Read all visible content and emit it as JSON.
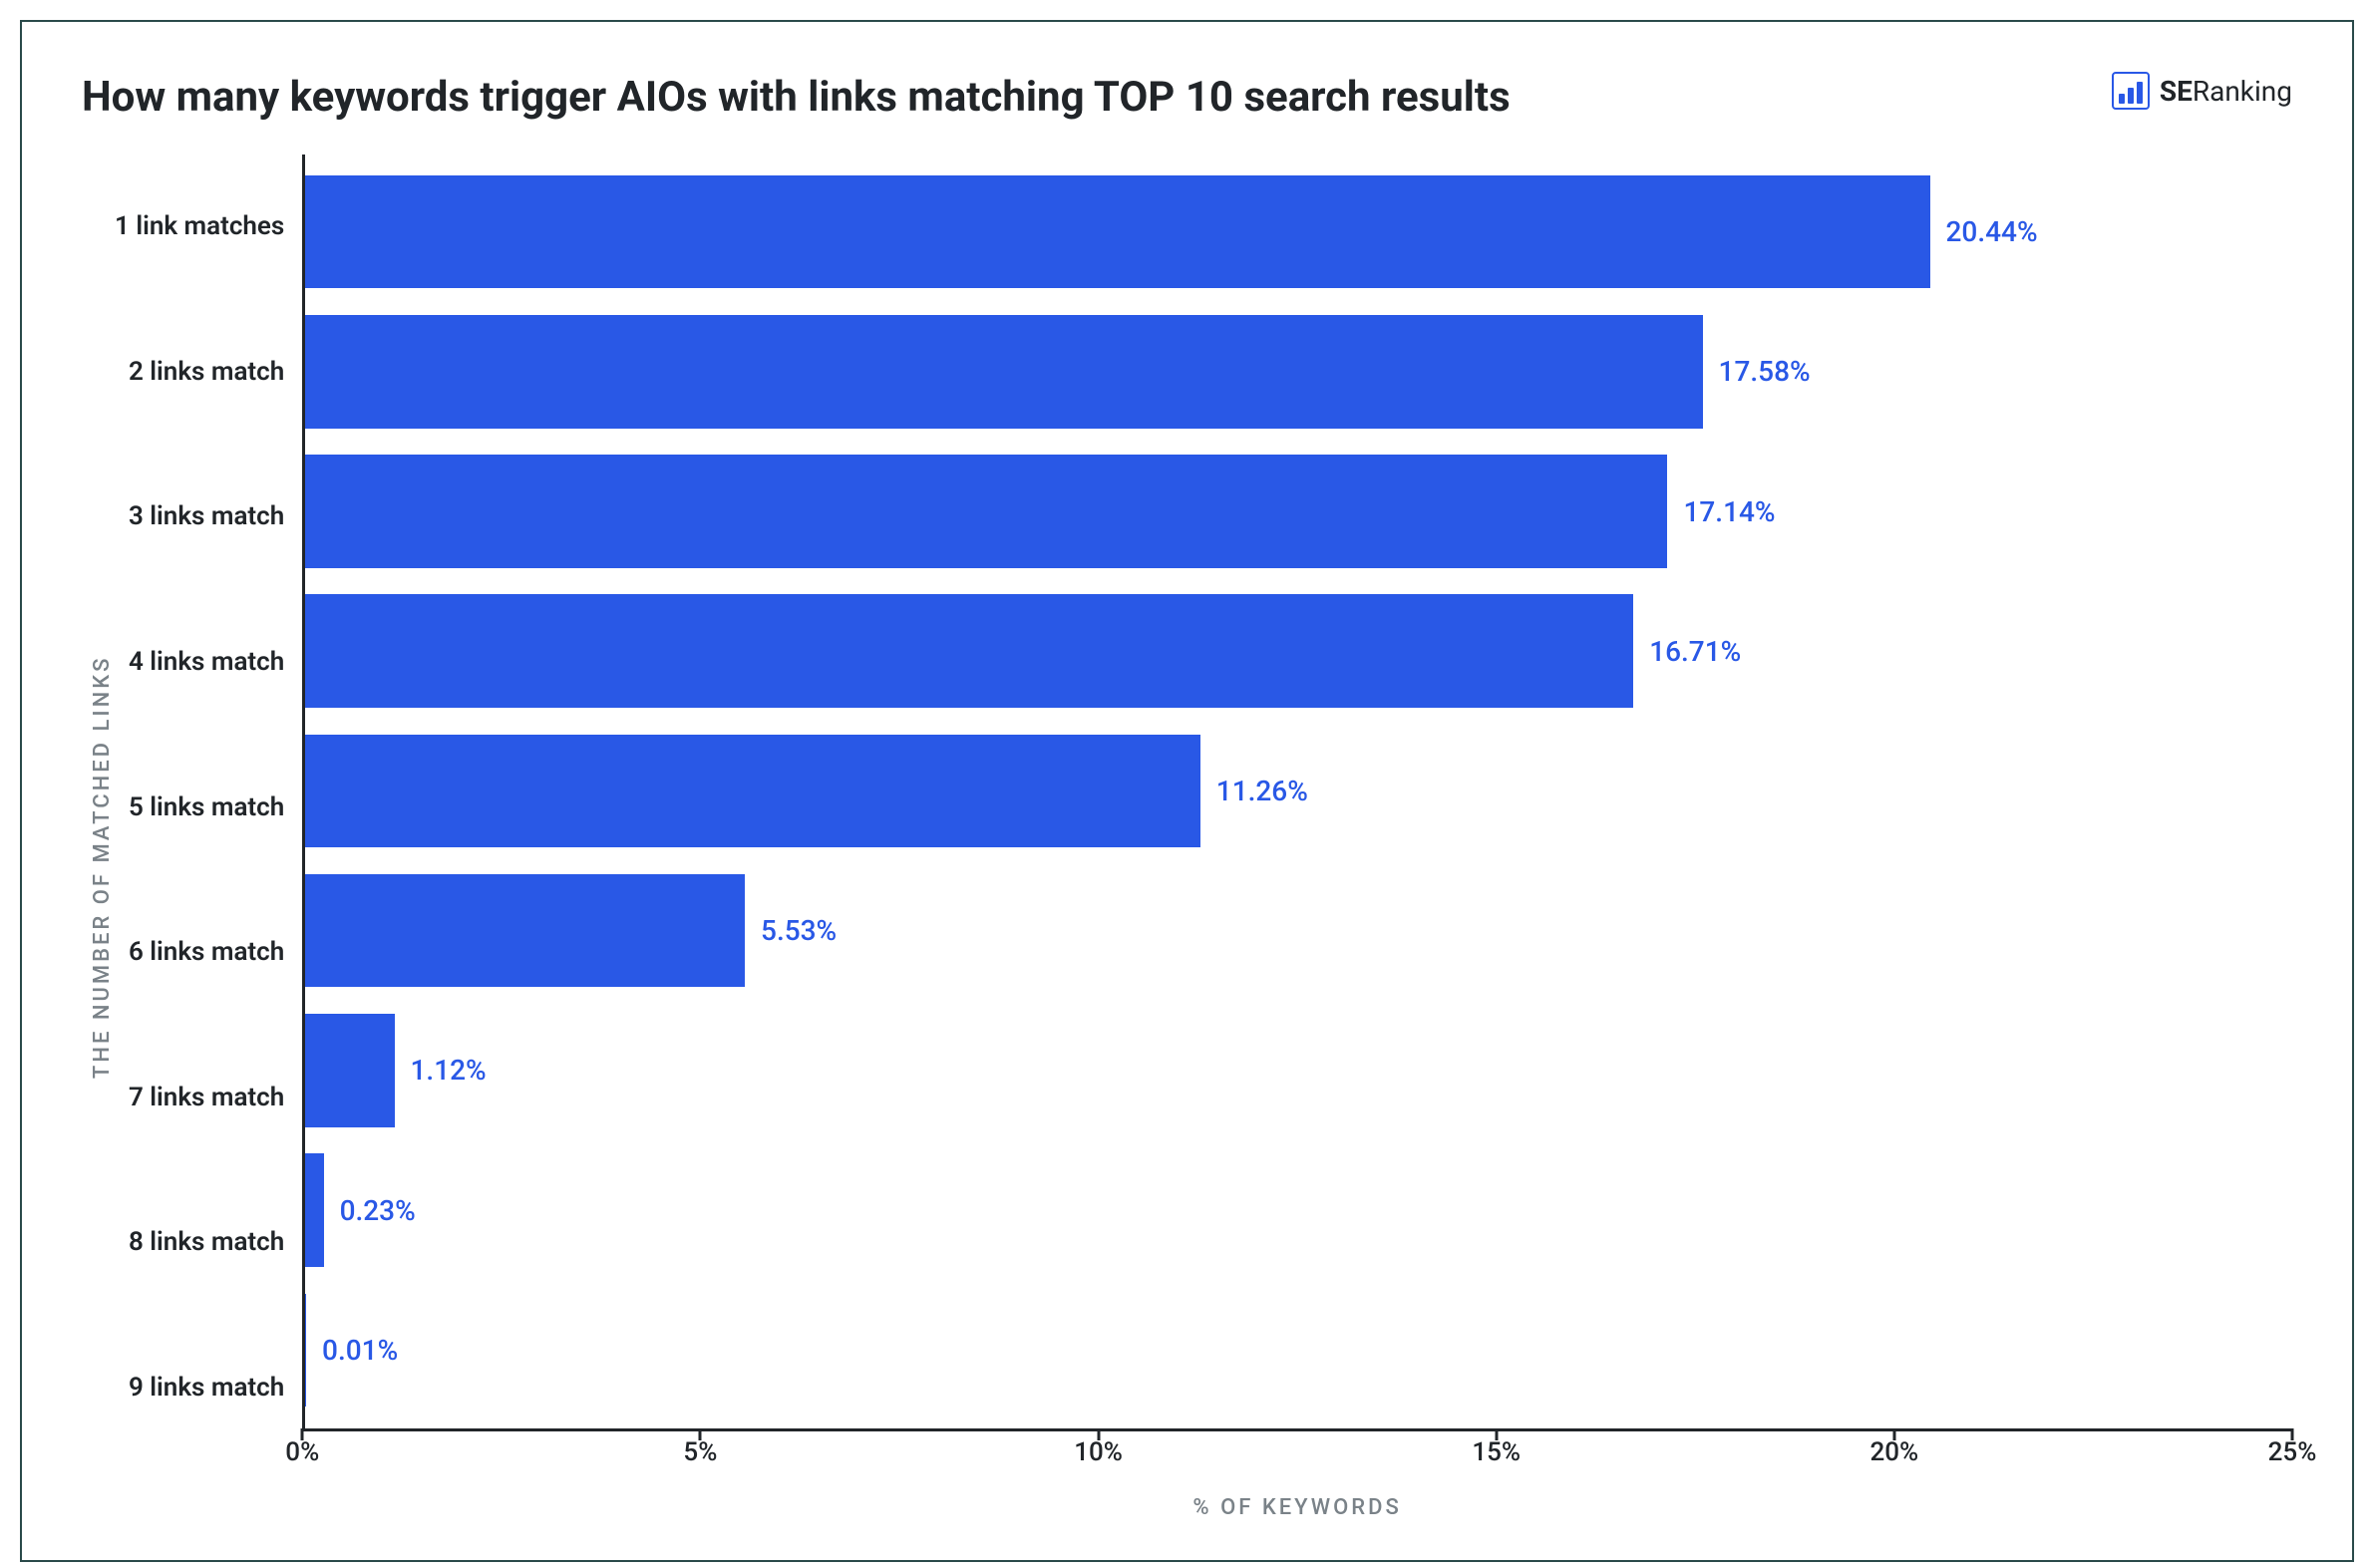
{
  "title": "How many keywords trigger AIOs with links matching TOP 10 search results",
  "brand": {
    "bold": "SE",
    "light": "Ranking",
    "color": "#2958e6"
  },
  "chart": {
    "type": "horizontal-bar",
    "y_axis_title": "THE NUMBER OF MATCHED LINKS",
    "x_axis_title": "% OF KEYWORDS",
    "xlim_max": 25,
    "x_ticks": [
      0,
      5,
      10,
      15,
      20,
      25
    ],
    "x_tick_suffix": "%",
    "bar_color": "#2958e6",
    "value_label_color": "#2958e6",
    "value_label_fontsize": 28,
    "category_label_fontsize": 26,
    "axis_title_fontsize": 22,
    "axis_title_color": "#7a8288",
    "axis_line_color": "#212529",
    "background_color": "#ffffff",
    "border_color": "#2a4a4a",
    "categories": [
      "1 link matches",
      "2 links match",
      "3 links match",
      "4 links match",
      "5 links match",
      "6 links match",
      "7 links match",
      "8 links match",
      "9 links match"
    ],
    "values": [
      20.44,
      17.58,
      17.14,
      16.71,
      11.26,
      5.53,
      1.12,
      0.23,
      0.01
    ],
    "value_labels": [
      "20.44%",
      "17.58%",
      "17.14%",
      "16.71%",
      "11.26%",
      "5.53%",
      "1.12%",
      "0.23%",
      "0.01%"
    ]
  }
}
